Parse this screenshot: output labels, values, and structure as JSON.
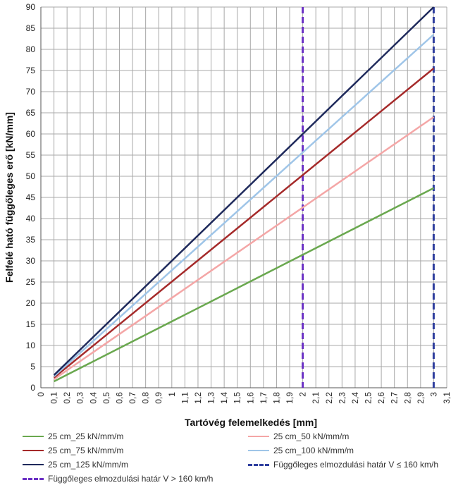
{
  "chart_data": {
    "type": "line",
    "xlabel": "Tartóvég felemelkedés [mm]",
    "ylabel": "Felfelé ható függőleges erő [kN/mm]",
    "xlim": [
      0,
      3.1
    ],
    "ylim": [
      0,
      90
    ],
    "x_ticks": [
      "0",
      "0,1",
      "0,2",
      "0,3",
      "0,4",
      "0,5",
      "0,6",
      "0,7",
      "0,8",
      "0,9",
      "1",
      "1,1",
      "1,2",
      "1,3",
      "1,4",
      "1,5",
      "1,6",
      "1,7",
      "1,8",
      "1,9",
      "2",
      "2,1",
      "2,2",
      "2,3",
      "2,4",
      "2,5",
      "2,6",
      "2,7",
      "2,8",
      "2,9",
      "3",
      "3,1"
    ],
    "y_ticks": [
      "0",
      "5",
      "10",
      "15",
      "20",
      "25",
      "30",
      "35",
      "40",
      "45",
      "50",
      "55",
      "60",
      "65",
      "70",
      "75",
      "80",
      "85",
      "90"
    ],
    "grid": true,
    "series": [
      {
        "name": "25 cm_25 kN/mm/m",
        "color": "#6aa84f",
        "x": [
          0.1,
          3.0
        ],
        "y": [
          1.5,
          47.2
        ]
      },
      {
        "name": "25 cm_50 kN/mm/m",
        "color": "#f4a6a6",
        "x": [
          0.1,
          3.0
        ],
        "y": [
          2.0,
          64.0
        ]
      },
      {
        "name": "25 cm_75 kN/mm/m",
        "color": "#a52a2a",
        "x": [
          0.1,
          3.0
        ],
        "y": [
          2.4,
          75.5
        ]
      },
      {
        "name": "25 cm_100 kN/mm/m",
        "color": "#9fc5e8",
        "x": [
          0.1,
          3.0
        ],
        "y": [
          2.7,
          83.5
        ]
      },
      {
        "name": "25 cm_125 kN/mm/m",
        "color": "#1f2a5c",
        "x": [
          0.1,
          3.0
        ],
        "y": [
          3.0,
          90.0
        ]
      }
    ],
    "reference_lines": [
      {
        "name": "Függőleges elmozdulási határ V ≤ 160 km/h",
        "color": "#2f3f9f",
        "x": 3.0,
        "style": "dashed"
      },
      {
        "name": "Függőleges elmozdulási határ V > 160 km/h",
        "color": "#6a2fc4",
        "x": 2.0,
        "style": "dashed"
      }
    ],
    "legend_position": "bottom"
  }
}
